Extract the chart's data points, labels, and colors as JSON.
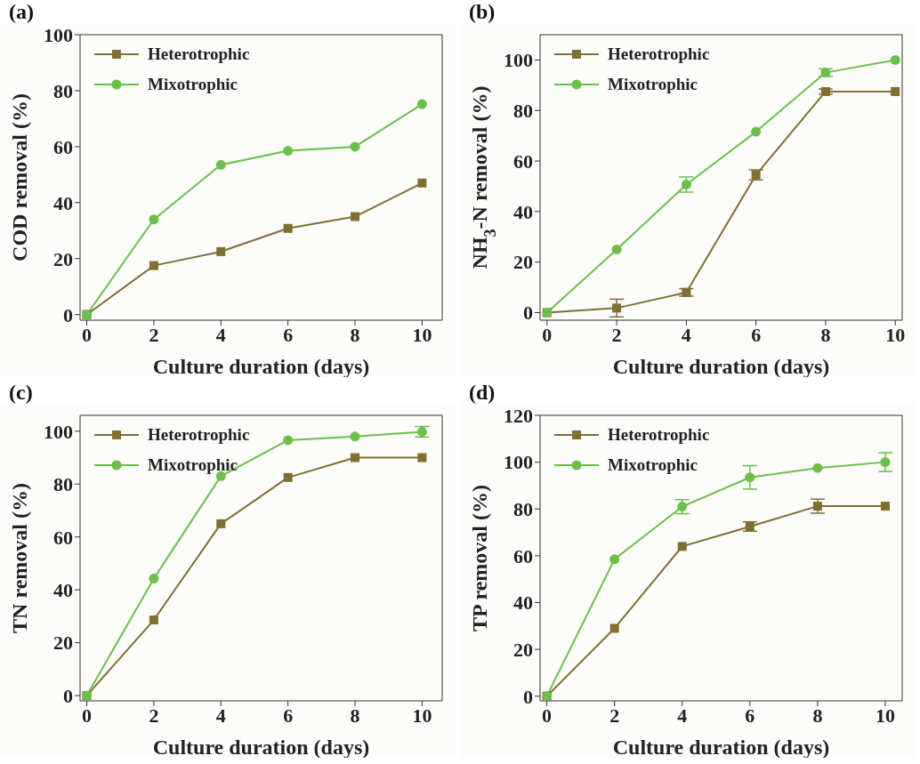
{
  "chart_data": [
    {
      "type": "line",
      "title": "(a)",
      "xlabel": "Culture duration (days)",
      "ylabel": "COD removal (%)",
      "x": [
        0,
        2,
        4,
        6,
        8,
        10
      ],
      "xlim": [
        -0.2,
        10.6
      ],
      "xticks": [
        0,
        2,
        4,
        6,
        8,
        10
      ],
      "ylim": [
        -2,
        100
      ],
      "yticks": [
        0,
        20,
        40,
        60,
        80,
        100
      ],
      "legend": "top left",
      "grid": false,
      "series": [
        {
          "name": "Heterotrophic",
          "color": "#7f6f33",
          "marker": "square",
          "values": [
            0,
            17.5,
            22.5,
            30.8,
            35,
            47
          ]
        },
        {
          "name": "Mixotrophic",
          "color": "#6cbf4a",
          "marker": "circle",
          "values": [
            0,
            34,
            53.5,
            58.5,
            60,
            75.2
          ]
        }
      ]
    },
    {
      "type": "line",
      "title": "(b)",
      "xlabel": "Culture duration (days)",
      "ylabel": "NH$_{3}$-N removal (%)",
      "x": [
        0,
        2,
        4,
        6,
        8,
        10
      ],
      "xlim": [
        -0.2,
        10.2
      ],
      "xticks": [
        0,
        2,
        4,
        6,
        8,
        10
      ],
      "ylim": [
        -3,
        110
      ],
      "yticks": [
        0,
        20,
        40,
        60,
        80,
        100
      ],
      "legend": "top left",
      "grid": false,
      "series": [
        {
          "name": "Heterotrophic",
          "color": "#7f6f33",
          "marker": "square",
          "values": [
            0,
            1.8,
            8,
            54.5,
            87.5,
            87.5
          ],
          "errors": [
            null,
            3.5,
            1.5,
            2,
            1,
            null
          ]
        },
        {
          "name": "Mixotrophic",
          "color": "#6cbf4a",
          "marker": "circle",
          "values": [
            0,
            25,
            50.7,
            71.6,
            95,
            100
          ],
          "errors": [
            null,
            null,
            3,
            null,
            1.5,
            null
          ]
        }
      ]
    },
    {
      "type": "line",
      "title": "(c)",
      "xlabel": "Culture duration (days)",
      "ylabel": "TN removal (%)",
      "x": [
        0,
        2,
        4,
        6,
        8,
        10
      ],
      "xlim": [
        -0.2,
        10.6
      ],
      "xticks": [
        0,
        2,
        4,
        6,
        8,
        10
      ],
      "ylim": [
        -2,
        106
      ],
      "yticks": [
        0,
        20,
        40,
        60,
        80,
        100
      ],
      "legend": "top left",
      "grid": false,
      "series": [
        {
          "name": "Heterotrophic",
          "color": "#7f6f33",
          "marker": "square",
          "values": [
            0,
            28.6,
            65,
            82.5,
            90,
            90
          ]
        },
        {
          "name": "Mixotrophic",
          "color": "#6cbf4a",
          "marker": "circle",
          "values": [
            0,
            44.3,
            83,
            96.6,
            98,
            99.8
          ],
          "errors": [
            null,
            null,
            null,
            null,
            null,
            2
          ]
        }
      ]
    },
    {
      "type": "line",
      "title": "(d)",
      "xlabel": "Culture duration (days)",
      "ylabel": "TP removal (%)",
      "x": [
        0,
        2,
        4,
        6,
        8,
        10
      ],
      "xlim": [
        -0.2,
        10.5
      ],
      "xticks": [
        0,
        2,
        4,
        6,
        8,
        10
      ],
      "ylim": [
        -2,
        120
      ],
      "yticks": [
        0,
        20,
        40,
        60,
        80,
        100,
        120
      ],
      "legend": "top left",
      "grid": false,
      "series": [
        {
          "name": "Heterotrophic",
          "color": "#7f6f33",
          "marker": "square",
          "values": [
            0,
            29,
            64,
            72.5,
            81.2,
            81.2
          ],
          "errors": [
            null,
            null,
            null,
            2,
            3,
            null
          ]
        },
        {
          "name": "Mixotrophic",
          "color": "#6cbf4a",
          "marker": "circle",
          "values": [
            0,
            58.5,
            81,
            93.5,
            97.5,
            100
          ],
          "errors": [
            null,
            null,
            3,
            5,
            null,
            4
          ]
        }
      ]
    }
  ]
}
